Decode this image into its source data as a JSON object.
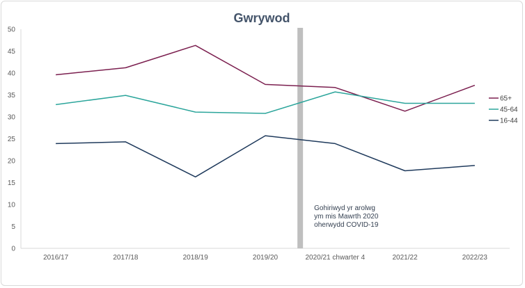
{
  "chart_data": {
    "type": "line",
    "title": "Gwrywod",
    "categories": [
      "2016/17",
      "2017/18",
      "2018/19",
      "2019/20",
      "2020/21 chwarter 4",
      "2021/22",
      "2022/23"
    ],
    "ylim": [
      0,
      50
    ],
    "yticks": [
      0,
      5,
      10,
      15,
      20,
      25,
      30,
      35,
      40,
      45,
      50
    ],
    "grid": false,
    "legend_position": "right",
    "series": [
      {
        "name": "65+",
        "color": "#7b1f4f",
        "values": [
          39.6,
          41.2,
          46.3,
          37.4,
          36.7,
          31.3,
          37.2
        ]
      },
      {
        "name": "45-64",
        "color": "#2ba59b",
        "values": [
          32.8,
          34.9,
          31.1,
          30.8,
          35.7,
          33.1,
          33.1
        ]
      },
      {
        "name": "16-44",
        "color": "#1f3a5c",
        "values": [
          23.9,
          24.3,
          16.3,
          25.7,
          23.9,
          17.7,
          18.9
        ]
      }
    ],
    "annotation": {
      "lines": [
        "Gohiriwyd yr arolwg",
        "ym mis Mawrth 2020",
        "oherwydd COVID-19"
      ],
      "band_color": "#bfbfbf",
      "band_after_category_index": 3
    }
  }
}
